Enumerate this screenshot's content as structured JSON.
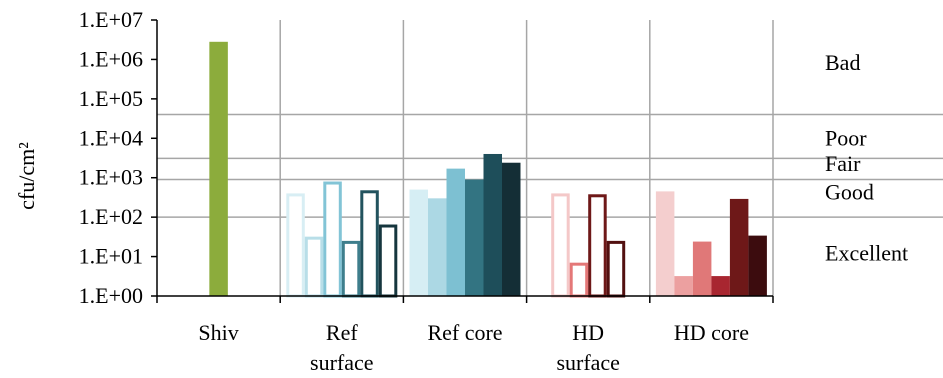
{
  "chart_data": {
    "type": "bar",
    "scale": "log",
    "ylabel": "cfu/cm²",
    "ylim": [
      1,
      10000000
    ],
    "y_ticks": [
      "1.E+00",
      "1.E+01",
      "1.E+02",
      "1.E+03",
      "1.E+04",
      "1.E+05",
      "1.E+06",
      "1.E+07"
    ],
    "grid": false,
    "legend": "none",
    "categories": [
      {
        "label_lines": [
          "Shiv"
        ]
      },
      {
        "label_lines": [
          "Ref",
          "surface"
        ]
      },
      {
        "label_lines": [
          "Ref core"
        ]
      },
      {
        "label_lines": [
          "HD",
          "surface"
        ]
      },
      {
        "label_lines": [
          "HD core"
        ]
      }
    ],
    "bars": [
      {
        "category": 0,
        "value": 2800000,
        "fill": "#8cac3c",
        "outline": false
      },
      {
        "category": 1,
        "value": 400,
        "color": "#d8eef4",
        "outline": true
      },
      {
        "category": 1,
        "value": 32,
        "color": "#b8dee8",
        "outline": true
      },
      {
        "category": 1,
        "value": 800,
        "color": "#82c4d6",
        "outline": true
      },
      {
        "category": 1,
        "value": 25,
        "color": "#3e7e8c",
        "outline": true
      },
      {
        "category": 1,
        "value": 480,
        "color": "#22535e",
        "outline": true
      },
      {
        "category": 1,
        "value": 65,
        "color": "#16363e",
        "outline": true
      },
      {
        "category": 2,
        "value": 500,
        "fill": "#d6eef4",
        "outline": false
      },
      {
        "category": 2,
        "value": 300,
        "fill": "#acd8e4",
        "outline": false
      },
      {
        "category": 2,
        "value": 1700,
        "fill": "#7dc0d2",
        "outline": false
      },
      {
        "category": 2,
        "value": 900,
        "fill": "#337482",
        "outline": false
      },
      {
        "category": 2,
        "value": 4000,
        "fill": "#1e4e5a",
        "outline": false
      },
      {
        "category": 2,
        "value": 2400,
        "fill": "#142e36",
        "outline": false
      },
      {
        "category": 3,
        "value": 400,
        "color": "#f4c8c8",
        "outline": true
      },
      {
        "category": 3,
        "value": 7,
        "color": "#e47878",
        "outline": true
      },
      {
        "category": 3,
        "value": 380,
        "color": "#6e1818",
        "outline": true
      },
      {
        "category": 3,
        "value": 25,
        "color": "#521010",
        "outline": true
      },
      {
        "category": 4,
        "value": 450,
        "fill": "#f4cece",
        "outline": false
      },
      {
        "category": 4,
        "value": 3.2,
        "fill": "#eca0a0",
        "outline": false
      },
      {
        "category": 4,
        "value": 24,
        "fill": "#e07878",
        "outline": false
      },
      {
        "category": 4,
        "value": 3.2,
        "fill": "#a82630",
        "outline": false
      },
      {
        "category": 4,
        "value": 290,
        "fill": "#6e1818",
        "outline": false
      },
      {
        "category": 4,
        "value": 34,
        "fill": "#3c0c0e",
        "outline": false
      }
    ],
    "quality_thresholds": [
      {
        "value": 40000
      },
      {
        "value": 3100
      },
      {
        "value": 900
      },
      {
        "value": 100
      }
    ],
    "quality_labels": [
      {
        "text": "Bad",
        "at": 800000
      },
      {
        "text": "Poor",
        "at": 10000
      },
      {
        "text": "Fair",
        "at": 2200
      },
      {
        "text": "Good",
        "at": 420
      },
      {
        "text": "Excellent",
        "at": 12
      }
    ]
  }
}
